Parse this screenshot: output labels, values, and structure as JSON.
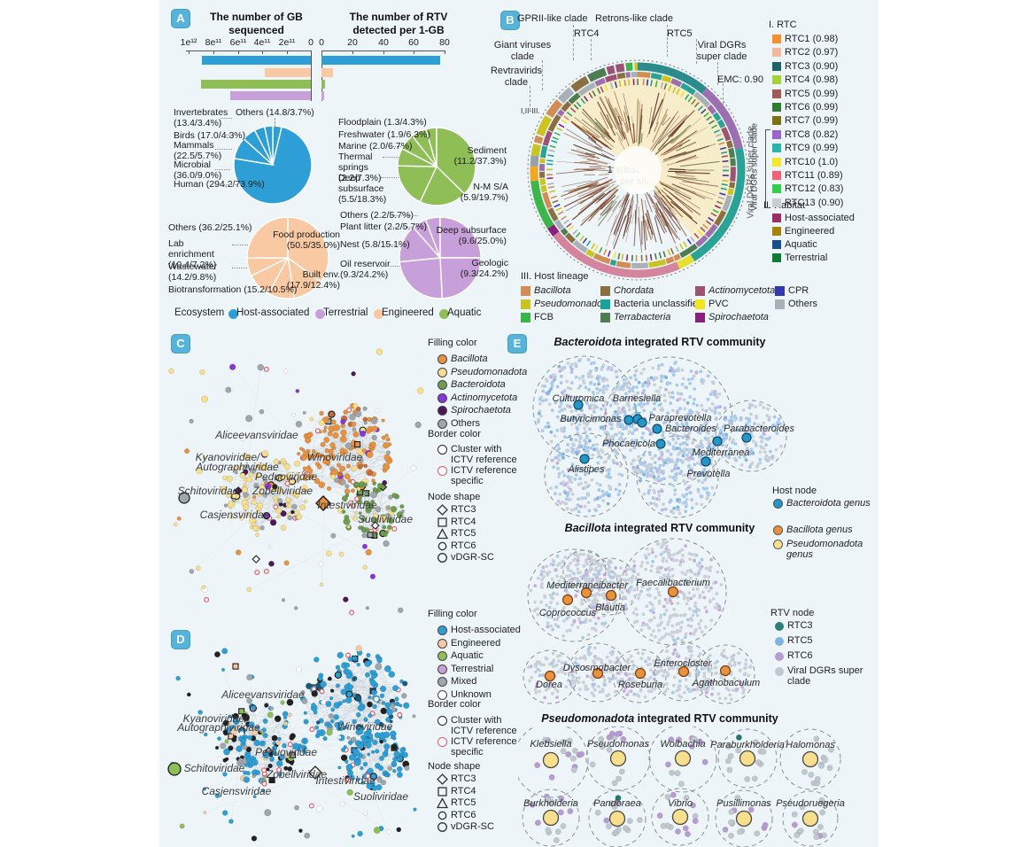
{
  "colors": {
    "figure_bg": "#EDF5F9",
    "badge_bg": "#56B3D9",
    "ecosystem": {
      "host_associated": "#2E9FD6",
      "terrestrial": "#C79FD9",
      "engineered": "#F8C9A2",
      "aquatic": "#8FBE56"
    }
  },
  "panelA": {
    "badge": "A",
    "bars": {
      "left_title": "The number of GB sequenced",
      "right_title": "The number of RTV detected per 1-GB",
      "left_ticks": [
        "1e¹²",
        "8e¹¹",
        "6e¹¹",
        "4e¹¹",
        "2e¹¹",
        "0"
      ],
      "right_ticks": [
        "0",
        "20",
        "40",
        "60",
        "80"
      ]
    },
    "ecosystem_legend": {
      "title": "Ecosystem",
      "items": [
        {
          "label": "Host-associated",
          "color": "#2E9FD6"
        },
        {
          "label": "Terrestrial",
          "color": "#C79FD9"
        },
        {
          "label": "Engineered",
          "color": "#F8C9A2"
        },
        {
          "label": "Aquatic",
          "color": "#8FBE56"
        }
      ]
    },
    "pies": [
      {
        "name": "Host-associated",
        "color": "#2E9FD6",
        "labels": [
          "Invertebrates (13.4/3.4%)",
          "Others (14.8/3.7%)",
          "Birds (17.0/4.3%)",
          "Mammals (22.5/5.7%)",
          "Microbial (36.0/9.0%)",
          "Human (294.2/73.9%)"
        ]
      },
      {
        "name": "Aquatic",
        "color": "#8FBE56",
        "labels": [
          "Floodplain (1.3/4.3%)",
          "Freshwater (1.9/6.3%)",
          "Marine (2.0/6.7%)",
          "Thermal springs (2.2/7.3%)",
          "Deep subsurface (5.5/18.3%)",
          "Sediment (11.2/37.3%)",
          "N-M S/A (5.9/19.7%)"
        ]
      },
      {
        "name": "Engineered",
        "color": "#F8C9A2",
        "labels": [
          "Others (36.2/25.1%)",
          "Lab enrichment (10.4/7.2%)",
          "Wastewater (14.2/9.8%)",
          "Biotransformation (15.2/10.5%)",
          "Food production (50.5/35.0%)",
          "Built env. (17.9/12.4%)"
        ]
      },
      {
        "name": "Terrestrial",
        "color": "#C79FD9",
        "labels": [
          "Others (2.2/5.7%)",
          "Plant litter (2.2/5.7%)",
          "Nest (5.8/15.1%)",
          "Oil reservoir (9.3/24.2%)",
          "Deep subsurface (9.6/25.0%)",
          "Geologic (9.3/24.2%)"
        ]
      }
    ]
  },
  "chart_data": [
    {
      "type": "bar",
      "title": "The number of GB sequenced",
      "categories": [
        "Host-associated",
        "Engineered",
        "Aquatic",
        "Terrestrial"
      ],
      "values": [
        890000000000.0,
        380000000000.0,
        900000000000.0,
        660000000000.0
      ],
      "xlabel": "GB sequenced",
      "xlim": [
        1000000000000.0,
        0
      ],
      "tick_values": [
        1000000000000.0,
        800000000000.0,
        600000000000.0,
        400000000000.0,
        200000000000.0,
        0
      ]
    },
    {
      "type": "bar",
      "title": "The number of RTV detected per 1-GB",
      "categories": [
        "Host-associated",
        "Engineered",
        "Aquatic",
        "Terrestrial"
      ],
      "values": [
        77,
        7.5,
        2.3,
        1.7
      ],
      "xlabel": "RTV per 1-GB",
      "xlim": [
        0,
        80
      ],
      "tick_values": [
        0,
        20,
        40,
        60,
        80
      ]
    },
    {
      "type": "pie",
      "title": "Host-associated",
      "slices": [
        {
          "label": "Human",
          "value": 294.2,
          "pct": 73.9
        },
        {
          "label": "Microbial",
          "value": 36.0,
          "pct": 9.0
        },
        {
          "label": "Mammals",
          "value": 22.5,
          "pct": 5.7
        },
        {
          "label": "Birds",
          "value": 17.0,
          "pct": 4.3
        },
        {
          "label": "Others",
          "value": 14.8,
          "pct": 3.7
        },
        {
          "label": "Invertebrates",
          "value": 13.4,
          "pct": 3.4
        }
      ]
    },
    {
      "type": "pie",
      "title": "Aquatic",
      "slices": [
        {
          "label": "Sediment",
          "value": 11.2,
          "pct": 37.3
        },
        {
          "label": "N-M S/A",
          "value": 5.9,
          "pct": 19.7
        },
        {
          "label": "Deep subsurface",
          "value": 5.5,
          "pct": 18.3
        },
        {
          "label": "Thermal springs",
          "value": 2.2,
          "pct": 7.3
        },
        {
          "label": "Marine",
          "value": 2.0,
          "pct": 6.7
        },
        {
          "label": "Freshwater",
          "value": 1.9,
          "pct": 6.3
        },
        {
          "label": "Floodplain",
          "value": 1.3,
          "pct": 4.3
        }
      ]
    },
    {
      "type": "pie",
      "title": "Engineered",
      "slices": [
        {
          "label": "Food production",
          "value": 50.5,
          "pct": 35.0
        },
        {
          "label": "Others",
          "value": 36.2,
          "pct": 25.1
        },
        {
          "label": "Built env.",
          "value": 17.9,
          "pct": 12.4
        },
        {
          "label": "Biotransformation",
          "value": 15.2,
          "pct": 10.5
        },
        {
          "label": "Wastewater",
          "value": 14.2,
          "pct": 9.8
        },
        {
          "label": "Lab enrichment",
          "value": 10.4,
          "pct": 7.2
        }
      ]
    },
    {
      "type": "pie",
      "title": "Terrestrial",
      "slices": [
        {
          "label": "Deep subsurface",
          "value": 9.6,
          "pct": 25.0
        },
        {
          "label": "Oil reservoir",
          "value": 9.3,
          "pct": 24.2
        },
        {
          "label": "Geologic",
          "value": 9.3,
          "pct": 24.2
        },
        {
          "label": "Nest",
          "value": 5.8,
          "pct": 15.1
        },
        {
          "label": "Plant litter",
          "value": 2.2,
          "pct": 5.7
        },
        {
          "label": "Others",
          "value": 2.2,
          "pct": 5.7
        }
      ]
    }
  ],
  "panelB": {
    "badge": "B",
    "annotations": {
      "gprii": "GPRII-like clade",
      "retrons": "Retrons-like clade",
      "rtc4": "RTC4",
      "rtc5": "RTC5",
      "giant": "Giant viruses clade",
      "viral_dgrs": "Viral DGRs super clade",
      "revtravirids": "Revtravirids clade",
      "emc": "EMC: 0.90",
      "sub_clades": "I,II-III.",
      "scale_line1": "1 substitution",
      "scale_line2": "per site",
      "ring_label": "Viral DGRs super clade"
    },
    "legend_rtc": {
      "title": "I. RTC",
      "bracket_label": "Viral DGRs super clade",
      "items": [
        {
          "label": "RTC1 (0.98)",
          "color": "#F5902A"
        },
        {
          "label": "RTC2 (0.97)",
          "color": "#EFB9A0"
        },
        {
          "label": "RTC3 (0.90)",
          "color": "#20626B"
        },
        {
          "label": "RTC4 (0.98)",
          "color": "#A6D435"
        },
        {
          "label": "RTC5 (0.99)",
          "color": "#A15B52"
        },
        {
          "label": "RTC6 (0.99)",
          "color": "#2F7D33"
        },
        {
          "label": "RTC7 (0.99)",
          "color": "#7D7010"
        },
        {
          "label": "RTC8 (0.82)",
          "color": "#9D64CF"
        },
        {
          "label": "RTC9 (0.99)",
          "color": "#2CB3AC"
        },
        {
          "label": "RTC10 (1.0)",
          "color": "#F2E832"
        },
        {
          "label": "RTC11 (0.89)",
          "color": "#F26272"
        },
        {
          "label": "RTC12 (0.83)",
          "color": "#33CC4E"
        },
        {
          "label": "RTC13 (0.90)",
          "color": "#C7CDD2"
        }
      ]
    },
    "legend_habitat": {
      "title": "II. Habitat",
      "items": [
        {
          "label": "Host-associated",
          "color": "#9C2D62"
        },
        {
          "label": "Engineered",
          "color": "#A8830B"
        },
        {
          "label": "Aquatic",
          "color": "#164F8F"
        },
        {
          "label": "Terrestrial",
          "color": "#107A36"
        }
      ]
    },
    "legend_host_lineage": {
      "title": "III. Host lineage",
      "items": [
        {
          "label": "Bacillota",
          "color": "#D28D54",
          "italic": true
        },
        {
          "label": "Pseudomonadota",
          "color": "#C9C41F",
          "italic": true
        },
        {
          "label": "FCB",
          "color": "#37B54A",
          "italic": false
        },
        {
          "label": "Chordata",
          "color": "#8A6F42",
          "italic": true
        },
        {
          "label": "Bacteria unclassified",
          "color": "#17A39B",
          "italic": false
        },
        {
          "label": "Terrabacteria",
          "color": "#4E7D52",
          "italic": true
        },
        {
          "label": "Actinomycetota",
          "color": "#9C5272",
          "italic": true
        },
        {
          "label": "PVC",
          "color": "#F2E41F",
          "italic": false
        },
        {
          "label": "Spirochaetota",
          "color": "#8C1F7D",
          "italic": true
        },
        {
          "label": "CPR",
          "color": "#3438B0",
          "italic": false
        },
        {
          "label": "Others",
          "color": "#A9B0B7",
          "italic": false
        }
      ]
    }
  },
  "panelC": {
    "badge": "C",
    "legend": {
      "fill": {
        "title": "Filling color",
        "items": [
          {
            "label": "Bacillota",
            "color": "#E8913F",
            "italic": true
          },
          {
            "label": "Pseudomonadota",
            "color": "#F7DF8E",
            "italic": true
          },
          {
            "label": "Bacteroidota",
            "color": "#6E9E4D",
            "italic": true
          },
          {
            "label": "Actinomycetota",
            "color": "#8637DB",
            "italic": true
          },
          {
            "label": "Spirochaetota",
            "color": "#4D1758",
            "italic": true
          },
          {
            "label": "Others",
            "color": "#9FA6AD",
            "italic": false
          }
        ]
      },
      "border": {
        "title": "Border color",
        "items": [
          {
            "label": "Cluster with ICTV reference",
            "color": "#222222"
          },
          {
            "label": "ICTV reference specific",
            "color": "#E05C6A"
          }
        ]
      },
      "shape": {
        "title": "Node shape",
        "items": [
          {
            "shape": "diamond",
            "label": "RTC3"
          },
          {
            "shape": "square",
            "label": "RTC4"
          },
          {
            "shape": "triangle",
            "label": "RTC5"
          },
          {
            "shape": "circle",
            "label": "RTC6"
          },
          {
            "shape": "circle",
            "label": "vDGR-SC"
          }
        ]
      }
    },
    "cluster_labels": [
      "Aliceevansviridae",
      "Kyanoviridae/",
      "Autographiviridae",
      "Winoviridae",
      "Peduoviridae",
      "Schitoviridae",
      "Zobellviridae",
      "Casjensviridae",
      "Intestiviridae",
      "Suoliviridae"
    ]
  },
  "panelD": {
    "badge": "D",
    "legend": {
      "fill": {
        "title": "Filling color",
        "items": [
          {
            "label": "Host-associated",
            "color": "#2E9FD6",
            "italic": false
          },
          {
            "label": "Engineered",
            "color": "#F8C9A2",
            "italic": false
          },
          {
            "label": "Aquatic",
            "color": "#8FBE56",
            "italic": false
          },
          {
            "label": "Terrestrial",
            "color": "#C79FD9",
            "italic": false
          },
          {
            "label": "Mixed",
            "color": "#9FA6AD",
            "italic": false
          },
          {
            "label": "Unknown",
            "color": "#FFFFFF",
            "italic": false
          }
        ]
      },
      "border": {
        "title": "Border color",
        "items": [
          {
            "label": "Cluster with ICTV reference",
            "color": "#222222"
          },
          {
            "label": "ICTV reference specific",
            "color": "#E05C6A"
          }
        ]
      },
      "shape": {
        "title": "Node shape",
        "items": [
          {
            "shape": "diamond",
            "label": "RTC3"
          },
          {
            "shape": "square",
            "label": "RTC4"
          },
          {
            "shape": "triangle",
            "label": "RTC5"
          },
          {
            "shape": "circle",
            "label": "RTC6"
          },
          {
            "shape": "circle",
            "label": "vDGR-SC"
          }
        ]
      }
    },
    "cluster_labels": [
      "Aliceevansviridae",
      "Kyanoviridae/",
      "Autographiviridae",
      "Winoviridae",
      "Peduoviridae",
      "Schitoviridae",
      "Zobellviridae",
      "Casjensviridae",
      "Intestiviridae",
      "Suoliviridae"
    ]
  },
  "panelE": {
    "badge": "E",
    "sections": [
      {
        "title_italic": "Bacteroidota",
        "title_rest": " integrated RTV community",
        "genera": [
          "Culturomica",
          "Barnesiella",
          "Butyricimonas",
          "Paraprevotella",
          "Bacteroides",
          "Parabacteroides",
          "Phocaeicola",
          "Mediterranea",
          "Alistipes",
          "Prevotella"
        ]
      },
      {
        "title_italic": "Bacillota",
        "title_rest": " integrated RTV community",
        "genera": [
          "Mediterraneibacter",
          "Faecalibacterium",
          "Coprococcus",
          "Blautia",
          "Dysosmobacter",
          "Enterocloster",
          "Dorea",
          "Roseburia",
          "Agathobaculum"
        ]
      },
      {
        "title_italic": "Pseudomonadota",
        "title_rest": " integrated RTV community",
        "genera": [
          "Klebsiella",
          "Pseudomonas",
          "Wolbachia",
          "Paraburkholderia",
          "Halomonas",
          "Burkholderia",
          "Pandoraea",
          "Vibrio",
          "Pusillimonas",
          "Pseudoruegeria"
        ]
      }
    ],
    "host_node_legend": {
      "title": "Host node",
      "items": [
        {
          "label": "Bacteroidota genus",
          "color": "#2596C8"
        },
        {
          "label": "Bacillota genus",
          "color": "#E8913F"
        },
        {
          "label": "Pseudomonadota genus",
          "color": "#F7DF8E"
        }
      ]
    },
    "rtv_node_legend": {
      "title": "RTV node",
      "items": [
        {
          "label": "RTC3",
          "color": "#2A7F77"
        },
        {
          "label": "RTC5",
          "color": "#7FB3E0"
        },
        {
          "label": "RTC6",
          "color": "#B79BD4"
        },
        {
          "label": "Viral DGRs super clade",
          "color": "#BFC7CF"
        }
      ]
    }
  }
}
